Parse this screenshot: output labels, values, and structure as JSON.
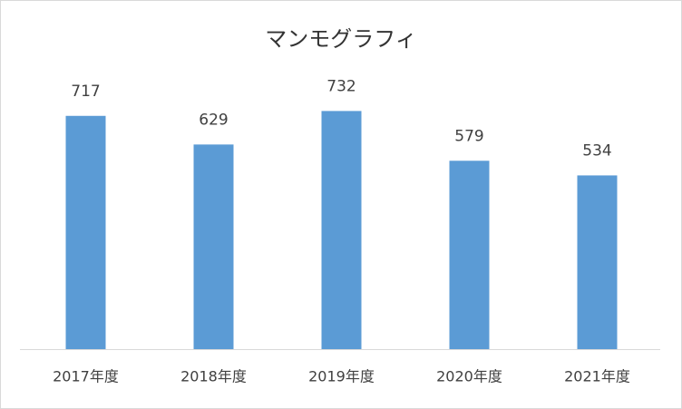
{
  "chart_data": {
    "type": "bar",
    "title": "マンモグラフィ",
    "categories": [
      "2017年度",
      "2018年度",
      "2019年度",
      "2020年度",
      "2021年度"
    ],
    "values": [
      717,
      629,
      732,
      579,
      534
    ],
    "color": "#5b9bd5",
    "ylim": [
      0,
      800
    ]
  }
}
